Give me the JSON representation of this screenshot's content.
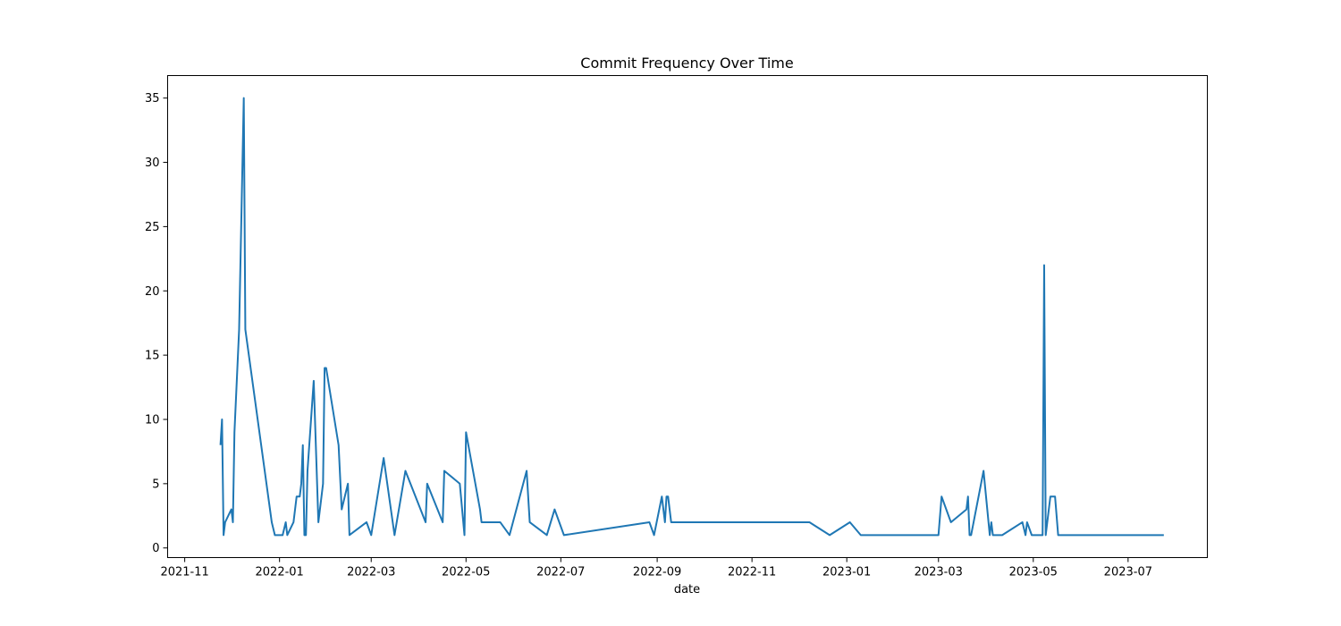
{
  "chart_data": {
    "type": "line",
    "title": "Commit Frequency Over Time",
    "xlabel": "date",
    "ylabel": "",
    "x_axis": "date",
    "xlim": [
      "2021-10-21",
      "2023-08-21"
    ],
    "ylim": [
      -0.75,
      36.75
    ],
    "xticks": [
      "2021-11",
      "2022-01",
      "2022-03",
      "2022-05",
      "2022-07",
      "2022-09",
      "2022-11",
      "2023-01",
      "2023-03",
      "2023-05",
      "2023-07"
    ],
    "xtick_dates": [
      "2021-11-01",
      "2022-01-01",
      "2022-03-01",
      "2022-05-01",
      "2022-07-01",
      "2022-09-01",
      "2022-11-01",
      "2023-01-01",
      "2023-03-01",
      "2023-05-01",
      "2023-07-01"
    ],
    "yticks": [
      0,
      5,
      10,
      15,
      20,
      25,
      30,
      35
    ],
    "grid": false,
    "line_color": "#1f77b4",
    "series": [
      {
        "x": [
          "2021-11-24",
          "2021-11-25",
          "2021-11-26",
          "2021-11-27",
          "2021-12-01",
          "2021-12-02",
          "2021-12-03",
          "2021-12-06",
          "2021-12-09",
          "2021-12-10",
          "2021-12-27",
          "2021-12-29",
          "2022-01-03",
          "2022-01-05",
          "2022-01-06",
          "2022-01-10",
          "2022-01-12",
          "2022-01-14",
          "2022-01-15",
          "2022-01-16",
          "2022-01-17",
          "2022-01-18",
          "2022-01-19",
          "2022-01-23",
          "2022-01-26",
          "2022-01-29",
          "2022-01-30",
          "2022-01-31",
          "2022-02-08",
          "2022-02-10",
          "2022-02-14",
          "2022-02-15",
          "2022-02-26",
          "2022-03-01",
          "2022-03-09",
          "2022-03-16",
          "2022-03-23",
          "2022-04-05",
          "2022-04-06",
          "2022-04-16",
          "2022-04-17",
          "2022-04-27",
          "2022-04-30",
          "2022-05-01",
          "2022-05-10",
          "2022-05-11",
          "2022-05-23",
          "2022-05-29",
          "2022-06-09",
          "2022-06-11",
          "2022-06-22",
          "2022-06-27",
          "2022-07-03",
          "2022-08-27",
          "2022-08-30",
          "2022-09-04",
          "2022-09-06",
          "2022-09-07",
          "2022-09-08",
          "2022-09-10",
          "2022-12-08",
          "2022-12-21",
          "2023-01-03",
          "2023-01-10",
          "2023-03-01",
          "2023-03-03",
          "2023-03-09",
          "2023-03-19",
          "2023-03-20",
          "2023-03-21",
          "2023-03-22",
          "2023-03-30",
          "2023-04-03",
          "2023-04-04",
          "2023-04-05",
          "2023-04-11",
          "2023-04-24",
          "2023-04-26",
          "2023-04-27",
          "2023-04-30",
          "2023-05-01",
          "2023-05-06",
          "2023-05-07",
          "2023-05-08",
          "2023-05-09",
          "2023-05-12",
          "2023-05-15",
          "2023-05-17",
          "2023-07-24"
        ],
        "values": [
          8,
          10,
          1,
          2,
          3,
          2,
          9,
          17,
          35,
          17,
          2,
          1,
          1,
          2,
          1,
          2,
          4,
          4,
          5,
          8,
          1,
          1,
          6,
          13,
          2,
          5,
          14,
          14,
          8,
          3,
          5,
          1,
          2,
          1,
          7,
          1,
          6,
          2,
          5,
          2,
          6,
          5,
          1,
          9,
          3,
          2,
          2,
          1,
          6,
          2,
          1,
          3,
          1,
          2,
          1,
          4,
          2,
          4,
          4,
          2,
          2,
          1,
          2,
          1,
          1,
          4,
          2,
          3,
          4,
          1,
          1,
          6,
          1,
          2,
          1,
          1,
          2,
          1,
          2,
          1,
          1,
          1,
          1,
          22,
          1,
          4,
          4,
          1,
          1
        ]
      }
    ]
  }
}
